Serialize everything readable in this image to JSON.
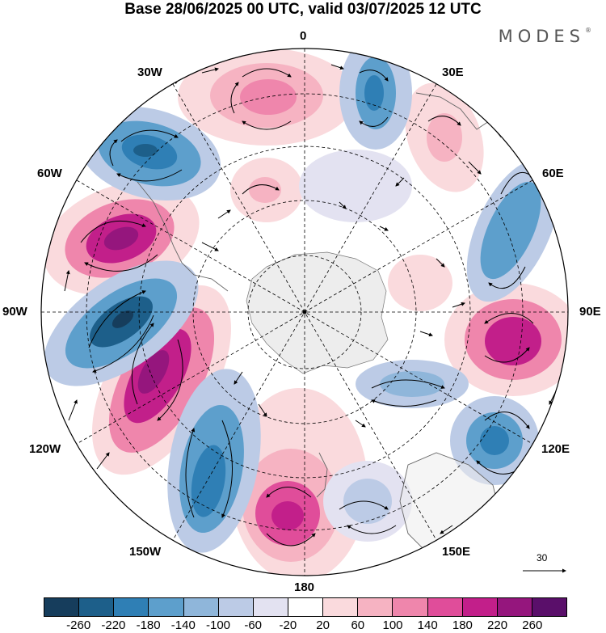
{
  "title": "Base 28/06/2025 00 UTC, valid 03/07/2025 12 UTC",
  "brand": "MODES",
  "brand_mark": "®",
  "longitude_labels": {
    "lon_0": "0",
    "lon_30e": "30E",
    "lon_60e": "60E",
    "lon_90e": "90E",
    "lon_120e": "120E",
    "lon_150e": "150E",
    "lon_180": "180",
    "lon_150w": "150W",
    "lon_120w": "120W",
    "lon_90w": "90W",
    "lon_60w": "60W",
    "lon_30w": "30W"
  },
  "reference_vector": "30",
  "colorbar": {
    "colors": [
      "#163d5c",
      "#1d5f8a",
      "#2f7fb5",
      "#5d9fcc",
      "#8fb6da",
      "#bccbe6",
      "#e3e2f1",
      "#ffffff",
      "#fadadd",
      "#f6b3c2",
      "#ef86ac",
      "#e04d9a",
      "#c21f8a",
      "#95167d",
      "#5a0f6a"
    ],
    "ticks": [
      "-260",
      "-220",
      "-180",
      "-140",
      "-100",
      "-60",
      "-20",
      "20",
      "60",
      "100",
      "140",
      "180",
      "220",
      "260"
    ]
  }
}
